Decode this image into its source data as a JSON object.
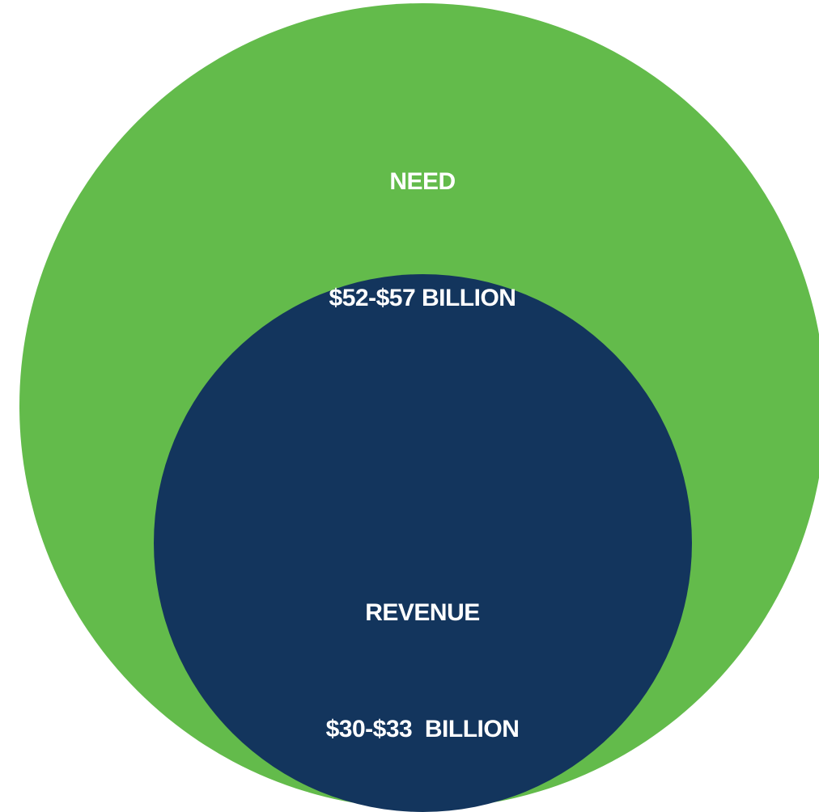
{
  "diagram": {
    "outer": {
      "title": "NEED",
      "value": "$52-$57 BILLION",
      "color": "#63bb4b"
    },
    "inner": {
      "title": "REVENUE",
      "value": "$30-$33  BILLION",
      "color": "#13355d"
    },
    "text_color": "#ffffff"
  }
}
